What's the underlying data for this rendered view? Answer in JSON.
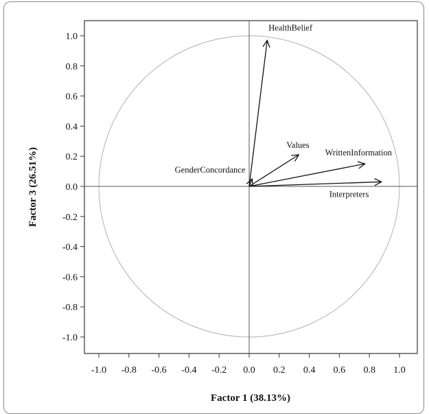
{
  "chart_data": {
    "type": "scatter",
    "subtype": "loading-plot-with-unit-circle",
    "xlabel": "Factor 1 (38.13%)",
    "ylabel": "Factor 3 (26.51%)",
    "xlim": [
      -1.1,
      1.1
    ],
    "ylim": [
      -1.1,
      1.1
    ],
    "x_ticks": [
      -1.0,
      -0.8,
      -0.6,
      -0.4,
      -0.2,
      0.0,
      0.2,
      0.4,
      0.6,
      0.8,
      1.0
    ],
    "y_ticks": [
      -1.0,
      -0.8,
      -0.6,
      -0.4,
      -0.2,
      0.0,
      0.2,
      0.4,
      0.6,
      0.8,
      1.0
    ],
    "x_tick_labels": [
      "-1.0",
      "-0.8",
      "-0.6",
      "-0.4",
      "-0.2",
      "0.0",
      "0.2",
      "0.4",
      "0.6",
      "0.8",
      "1.0"
    ],
    "y_tick_labels": [
      "-1.0",
      "-0.8",
      "-0.6",
      "-0.4",
      "-0.2",
      "0.0",
      "0.2",
      "0.4",
      "0.6",
      "0.8",
      "1.0"
    ],
    "circle_radius": 1.0,
    "reference_lines": {
      "x": 0,
      "y": 0
    },
    "grid": false,
    "vectors": [
      {
        "name": "HealthBelief",
        "x": 0.12,
        "y": 0.97
      },
      {
        "name": "Values",
        "x": 0.33,
        "y": 0.21
      },
      {
        "name": "WrittenInformation",
        "x": 0.77,
        "y": 0.15
      },
      {
        "name": "Interpreters",
        "x": 0.88,
        "y": 0.03
      },
      {
        "name": "GenderConcordance",
        "x": 0.02,
        "y": 0.05
      }
    ],
    "colors": {
      "circle": "#b0b0b0",
      "axes": "#555555",
      "arrows": "#111111"
    }
  }
}
